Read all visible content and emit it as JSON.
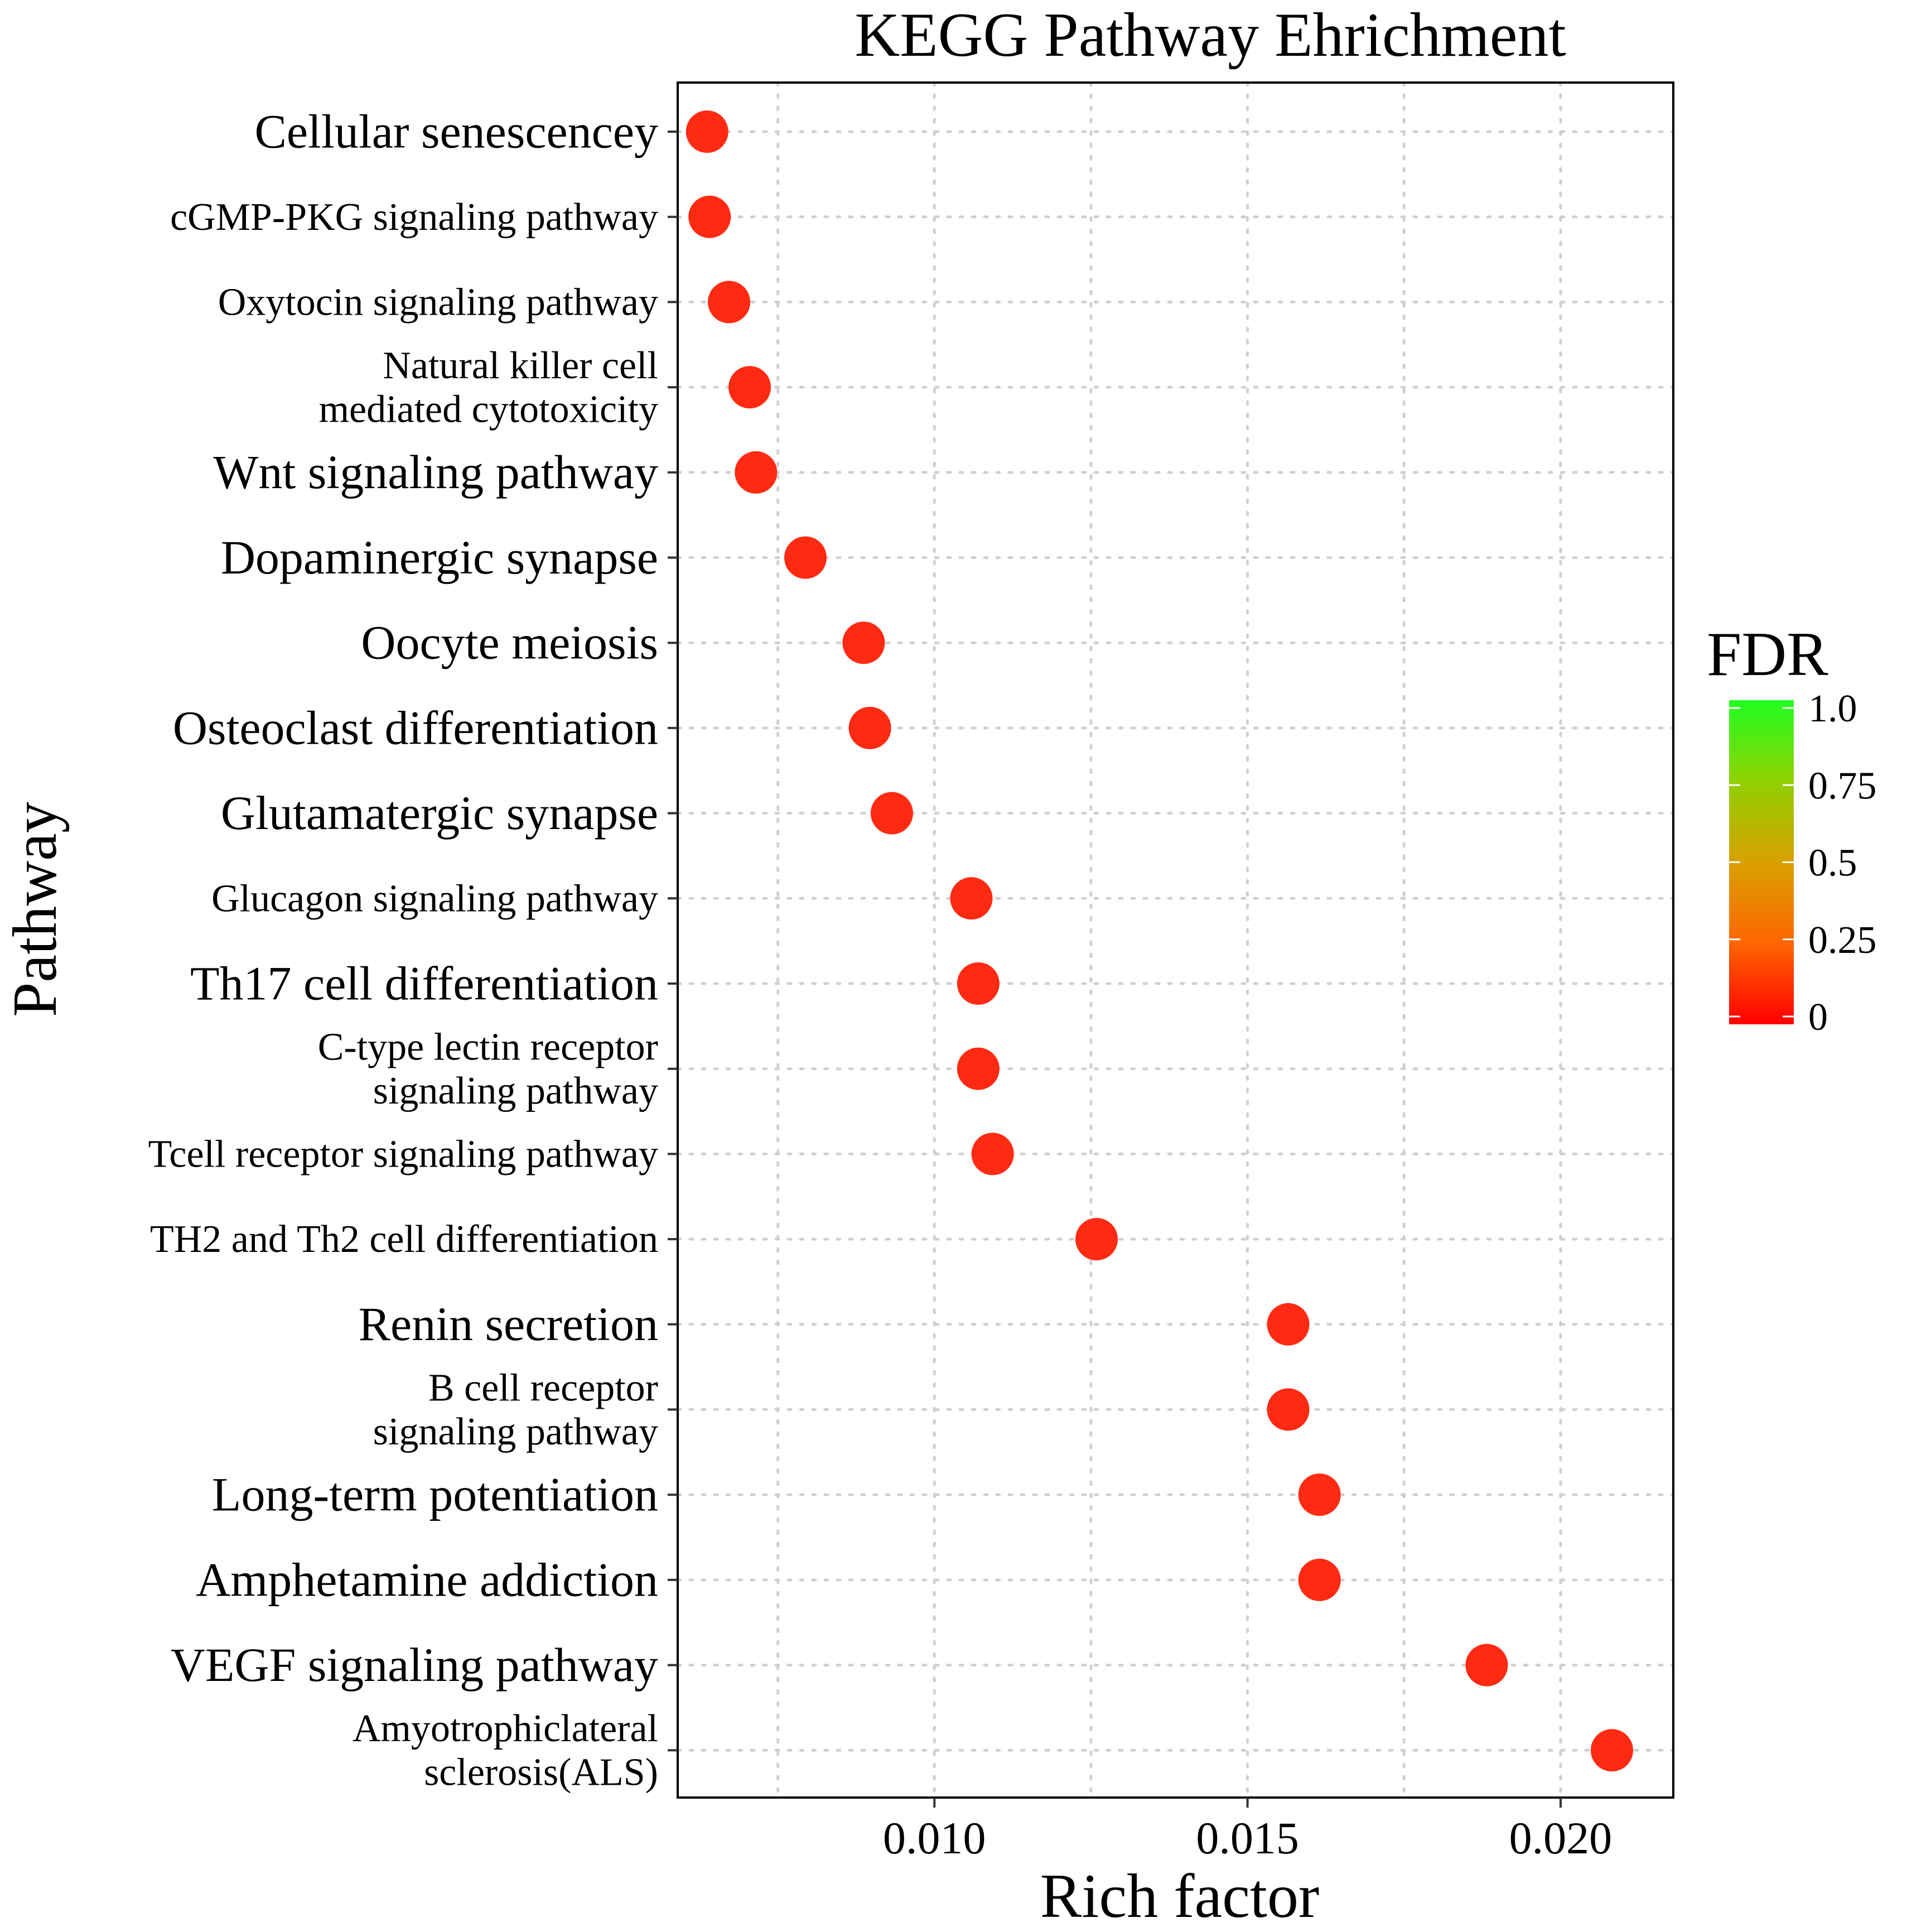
{
  "chart_data": {
    "type": "scatter",
    "title": "KEGG Pathway Ehrichment",
    "xlabel": "Rich factor",
    "ylabel": "Pathway",
    "xlim": [
      0.0059,
      0.0218
    ],
    "x_ticks": [
      {
        "value": 0.01,
        "label": "0.010"
      },
      {
        "value": 0.015,
        "label": "0.015"
      },
      {
        "value": 0.02,
        "label": "0.020"
      }
    ],
    "grid": true,
    "grid_style": "dotted",
    "point_color": "#ff2a12",
    "categories": [
      {
        "label": [
          "Cellular senescencey"
        ],
        "size": "large",
        "rich_factor": 0.00637,
        "fdr": 0.02
      },
      {
        "label": [
          "cGMP-PKG signaling pathway"
        ],
        "size": "small",
        "rich_factor": 0.00641,
        "fdr": 0.02
      },
      {
        "label": [
          "Oxytocin signaling pathway"
        ],
        "size": "small",
        "rich_factor": 0.00672,
        "fdr": 0.02
      },
      {
        "label": [
          "Natural killer cell",
          "mediated cytotoxicity"
        ],
        "size": "small",
        "rich_factor": 0.00705,
        "fdr": 0.02
      },
      {
        "label": [
          "Wnt signaling pathway"
        ],
        "size": "large",
        "rich_factor": 0.00715,
        "fdr": 0.02
      },
      {
        "label": [
          "Dopaminergic synapse"
        ],
        "size": "large",
        "rich_factor": 0.00794,
        "fdr": 0.02
      },
      {
        "label": [
          "Oocyte meiosis"
        ],
        "size": "large",
        "rich_factor": 0.00887,
        "fdr": 0.02
      },
      {
        "label": [
          "Osteoclast differentiation"
        ],
        "size": "large",
        "rich_factor": 0.00897,
        "fdr": 0.02
      },
      {
        "label": [
          "Glutamatergic synapse"
        ],
        "size": "large",
        "rich_factor": 0.00932,
        "fdr": 0.02
      },
      {
        "label": [
          "Glucagon signaling pathway"
        ],
        "size": "small",
        "rich_factor": 0.01059,
        "fdr": 0.02
      },
      {
        "label": [
          "Th17 cell differentiation"
        ],
        "size": "large",
        "rich_factor": 0.0107,
        "fdr": 0.02
      },
      {
        "label": [
          "C-type lectin receptor",
          "signaling pathway"
        ],
        "size": "small",
        "rich_factor": 0.0107,
        "fdr": 0.02
      },
      {
        "label": [
          "Tcell receptor signaling pathway"
        ],
        "size": "small",
        "rich_factor": 0.01093,
        "fdr": 0.02
      },
      {
        "label": [
          "TH2 and Th2 cell differentiation"
        ],
        "size": "small",
        "rich_factor": 0.01259,
        "fdr": 0.02
      },
      {
        "label": [
          "Renin secretion"
        ],
        "size": "large",
        "rich_factor": 0.01565,
        "fdr": 0.02
      },
      {
        "label": [
          "B cell receptor",
          "signaling pathway"
        ],
        "size": "small",
        "rich_factor": 0.01565,
        "fdr": 0.02
      },
      {
        "label": [
          "Long-term potentiation"
        ],
        "size": "large",
        "rich_factor": 0.01615,
        "fdr": 0.02
      },
      {
        "label": [
          "Amphetamine addiction"
        ],
        "size": "large",
        "rich_factor": 0.01615,
        "fdr": 0.02
      },
      {
        "label": [
          "VEGF signaling pathway"
        ],
        "size": "large",
        "rich_factor": 0.01882,
        "fdr": 0.02
      },
      {
        "label": [
          "Amyotrophiclateral",
          "sclerosis(ALS)"
        ],
        "size": "small",
        "rich_factor": 0.02082,
        "fdr": 0.02
      }
    ],
    "legend": {
      "title": "FDR",
      "position": "right",
      "range": [
        0,
        1.0
      ],
      "colors": [
        "#ff0000",
        "#ff6600",
        "#d8a000",
        "#8fd000",
        "#22ff22"
      ],
      "ticks": [
        {
          "value": 1.0,
          "label": "1.0"
        },
        {
          "value": 0.75,
          "label": "0.75"
        },
        {
          "value": 0.5,
          "label": "0.5"
        },
        {
          "value": 0.25,
          "label": "0.25"
        },
        {
          "value": 0,
          "label": "0"
        }
      ]
    }
  }
}
